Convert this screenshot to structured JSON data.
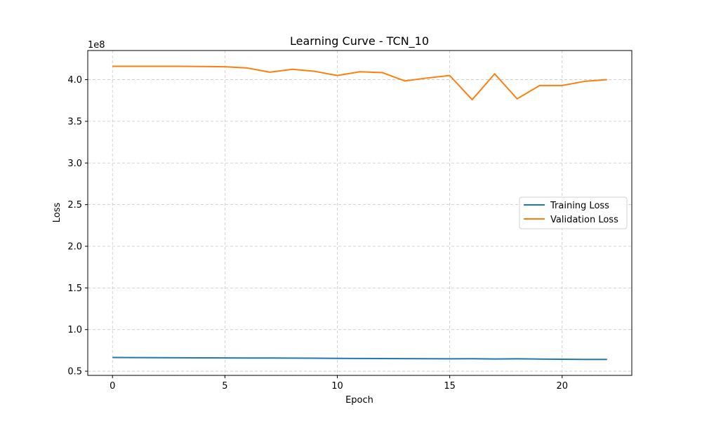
{
  "chart_data": {
    "type": "line",
    "title": "Learning Curve - TCN_10",
    "xlabel": "Epoch",
    "ylabel": "Loss",
    "y_offset_label": "1e8",
    "xlim": [
      -1.1,
      23.1
    ],
    "ylim": [
      0.45,
      4.35
    ],
    "y_scale_factor": 100000000,
    "x_ticks": [
      0,
      5,
      10,
      15,
      20
    ],
    "y_ticks": [
      0.5,
      1.0,
      1.5,
      2.0,
      2.5,
      3.0,
      3.5,
      4.0
    ],
    "y_tick_labels": [
      "0.5",
      "1.0",
      "1.5",
      "2.0",
      "2.5",
      "3.0",
      "3.5",
      "4.0"
    ],
    "grid": true,
    "legend_position": "center-right",
    "x": [
      0,
      1,
      2,
      3,
      4,
      5,
      6,
      7,
      8,
      9,
      10,
      11,
      12,
      13,
      14,
      15,
      16,
      17,
      18,
      19,
      20,
      21,
      22
    ],
    "series": [
      {
        "name": "Training Loss",
        "color": "#1f77b4",
        "values": [
          0.665,
          0.664,
          0.663,
          0.662,
          0.661,
          0.66,
          0.659,
          0.658,
          0.657,
          0.656,
          0.654,
          0.653,
          0.652,
          0.651,
          0.65,
          0.649,
          0.65,
          0.647,
          0.649,
          0.646,
          0.644,
          0.642,
          0.642
        ]
      },
      {
        "name": "Validation Loss",
        "color": "#ff7f0e",
        "values": [
          4.16,
          4.16,
          4.16,
          4.16,
          4.158,
          4.155,
          4.14,
          4.09,
          4.125,
          4.1,
          4.05,
          4.095,
          4.085,
          3.985,
          4.02,
          4.05,
          3.76,
          4.07,
          3.77,
          3.93,
          3.93,
          3.98,
          4.0
        ]
      }
    ]
  }
}
